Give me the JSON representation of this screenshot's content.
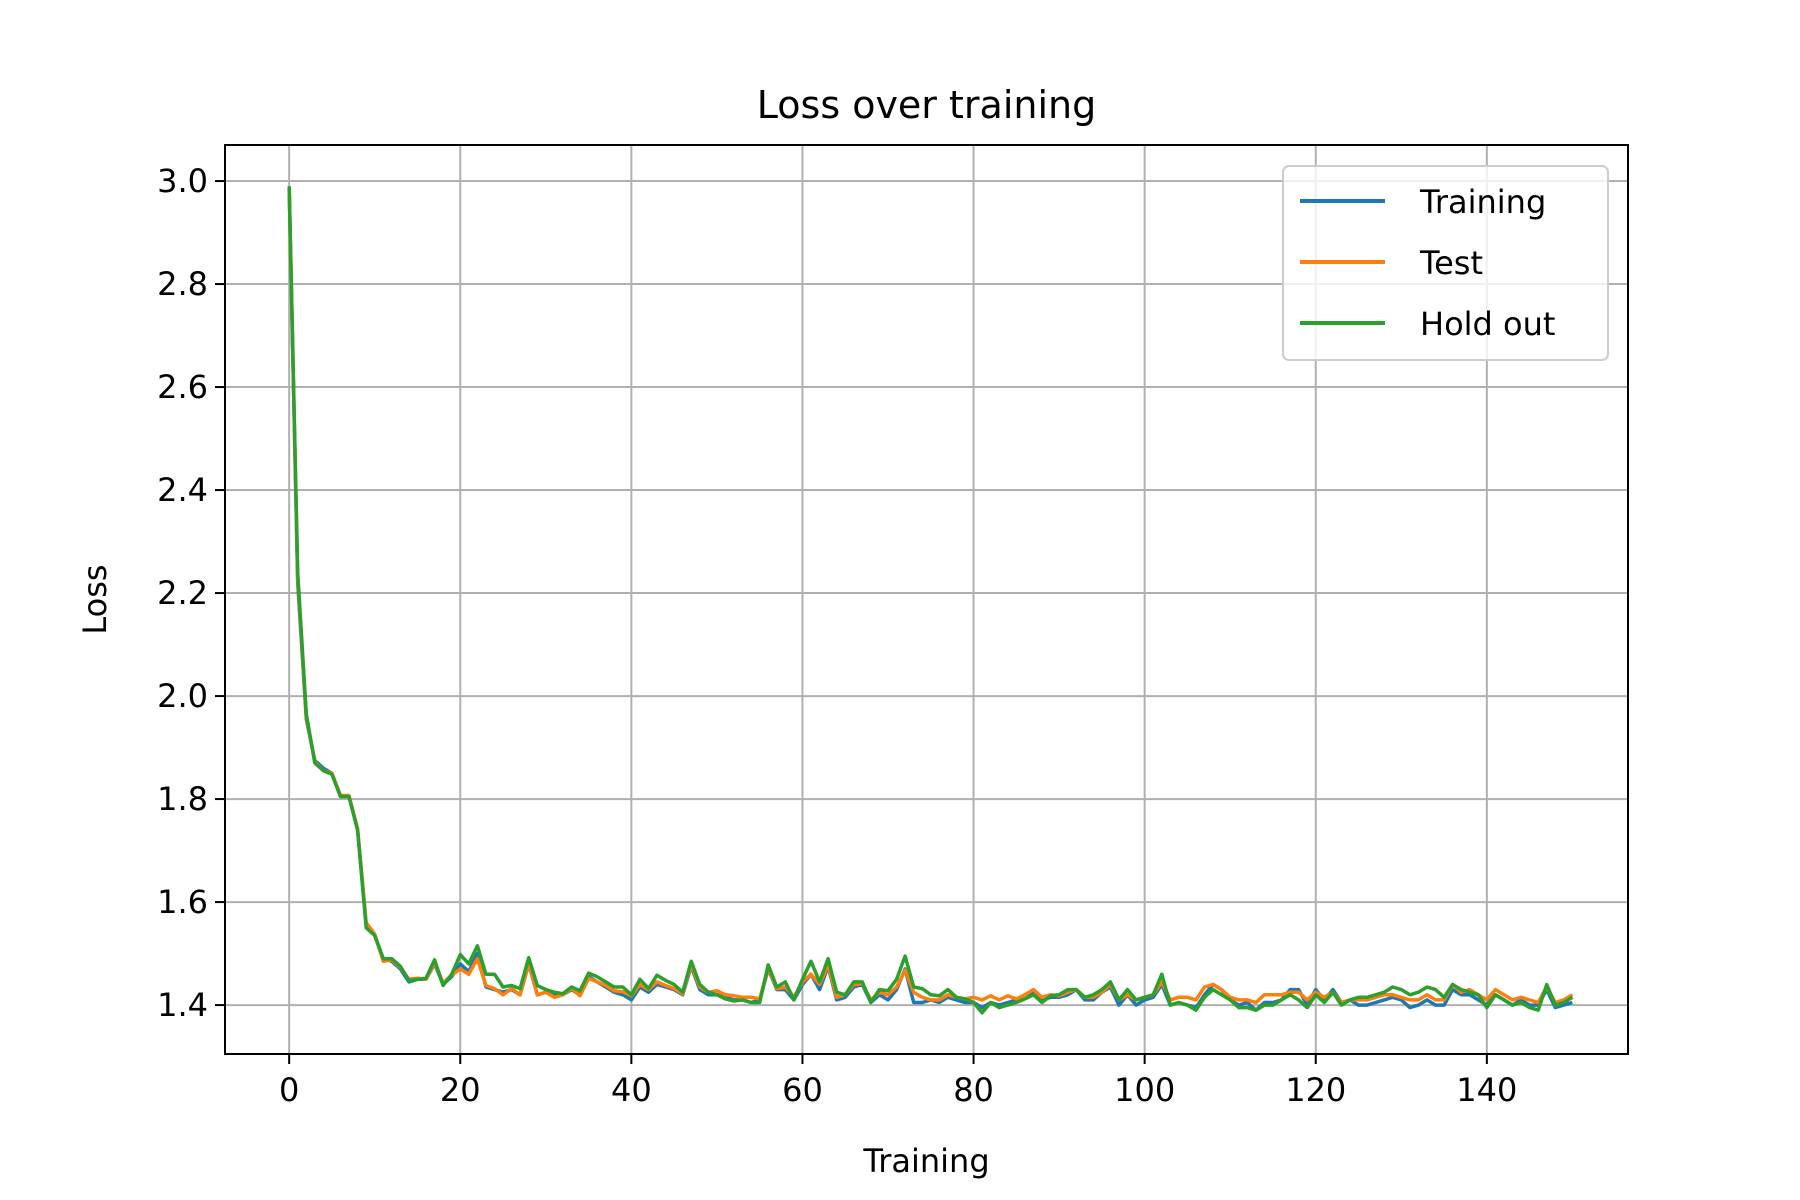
{
  "chart_data": {
    "type": "line",
    "title": "Loss over training",
    "xlabel": "Training",
    "ylabel": "Loss",
    "xlim": [
      -7.5,
      156.5
    ],
    "ylim": [
      1.305,
      3.07
    ],
    "xticks": [
      0,
      20,
      40,
      60,
      80,
      100,
      120,
      140
    ],
    "yticks": [
      1.4,
      1.6,
      1.8,
      2.0,
      2.2,
      2.4,
      2.6,
      2.8,
      3.0
    ],
    "x_tick_labels": [
      "0",
      "20",
      "40",
      "60",
      "80",
      "100",
      "120",
      "140"
    ],
    "y_tick_labels": [
      "1.4",
      "1.6",
      "1.8",
      "2.0",
      "2.2",
      "2.4",
      "2.6",
      "2.8",
      "3.0"
    ],
    "grid": true,
    "legend_position": "top-right",
    "x_start": 0,
    "series": [
      {
        "name": "Training",
        "color": "#1f77b4",
        "values": [
          2.985,
          2.22,
          1.955,
          1.875,
          1.86,
          1.85,
          1.805,
          1.805,
          1.74,
          1.555,
          1.535,
          1.49,
          1.485,
          1.47,
          1.445,
          1.45,
          1.45,
          1.48,
          1.44,
          1.455,
          1.48,
          1.465,
          1.5,
          1.435,
          1.43,
          1.425,
          1.43,
          1.42,
          1.48,
          1.42,
          1.425,
          1.42,
          1.42,
          1.43,
          1.42,
          1.455,
          1.445,
          1.435,
          1.425,
          1.42,
          1.41,
          1.435,
          1.425,
          1.44,
          1.435,
          1.43,
          1.42,
          1.475,
          1.43,
          1.42,
          1.42,
          1.415,
          1.41,
          1.41,
          1.405,
          1.41,
          1.47,
          1.43,
          1.43,
          1.41,
          1.44,
          1.46,
          1.43,
          1.475,
          1.41,
          1.415,
          1.435,
          1.44,
          1.405,
          1.42,
          1.41,
          1.43,
          1.47,
          1.405,
          1.405,
          1.41,
          1.405,
          1.415,
          1.41,
          1.405,
          1.405,
          1.395,
          1.405,
          1.4,
          1.405,
          1.41,
          1.42,
          1.425,
          1.41,
          1.415,
          1.415,
          1.42,
          1.43,
          1.41,
          1.41,
          1.425,
          1.435,
          1.4,
          1.42,
          1.4,
          1.41,
          1.415,
          1.44,
          1.4,
          1.405,
          1.4,
          1.395,
          1.42,
          1.44,
          1.43,
          1.41,
          1.4,
          1.405,
          1.39,
          1.405,
          1.405,
          1.41,
          1.43,
          1.43,
          1.4,
          1.43,
          1.41,
          1.43,
          1.405,
          1.41,
          1.4,
          1.4,
          1.405,
          1.41,
          1.415,
          1.41,
          1.395,
          1.4,
          1.41,
          1.4,
          1.4,
          1.43,
          1.42,
          1.42,
          1.41,
          1.4,
          1.42,
          1.41,
          1.4,
          1.41,
          1.4,
          1.4,
          1.43,
          1.395,
          1.4,
          1.405
        ]
      },
      {
        "name": "Test",
        "color": "#ff7f0e",
        "values": [
          2.985,
          2.23,
          1.96,
          1.872,
          1.855,
          1.85,
          1.807,
          1.807,
          1.742,
          1.56,
          1.538,
          1.485,
          1.488,
          1.473,
          1.45,
          1.452,
          1.45,
          1.482,
          1.443,
          1.458,
          1.47,
          1.46,
          1.49,
          1.438,
          1.432,
          1.42,
          1.432,
          1.42,
          1.482,
          1.42,
          1.425,
          1.415,
          1.42,
          1.432,
          1.418,
          1.452,
          1.445,
          1.438,
          1.428,
          1.426,
          1.418,
          1.44,
          1.43,
          1.445,
          1.438,
          1.432,
          1.422,
          1.478,
          1.435,
          1.425,
          1.428,
          1.42,
          1.418,
          1.415,
          1.415,
          1.412,
          1.472,
          1.432,
          1.435,
          1.415,
          1.445,
          1.46,
          1.44,
          1.478,
          1.415,
          1.42,
          1.44,
          1.442,
          1.41,
          1.425,
          1.42,
          1.435,
          1.468,
          1.425,
          1.415,
          1.41,
          1.41,
          1.42,
          1.415,
          1.412,
          1.415,
          1.41,
          1.418,
          1.41,
          1.418,
          1.412,
          1.42,
          1.43,
          1.415,
          1.42,
          1.418,
          1.425,
          1.43,
          1.415,
          1.415,
          1.425,
          1.44,
          1.41,
          1.42,
          1.41,
          1.415,
          1.42,
          1.445,
          1.41,
          1.415,
          1.415,
          1.41,
          1.435,
          1.44,
          1.43,
          1.415,
          1.41,
          1.41,
          1.405,
          1.42,
          1.42,
          1.42,
          1.425,
          1.425,
          1.41,
          1.425,
          1.415,
          1.425,
          1.405,
          1.41,
          1.41,
          1.41,
          1.415,
          1.42,
          1.42,
          1.415,
          1.41,
          1.41,
          1.42,
          1.41,
          1.41,
          1.44,
          1.425,
          1.43,
          1.42,
          1.41,
          1.43,
          1.42,
          1.41,
          1.415,
          1.41,
          1.405,
          1.435,
          1.405,
          1.41,
          1.42
        ]
      },
      {
        "name": "Hold out",
        "color": "#2ca02c",
        "values": [
          2.99,
          2.24,
          1.965,
          1.87,
          1.855,
          1.848,
          1.805,
          1.805,
          1.74,
          1.55,
          1.535,
          1.49,
          1.49,
          1.475,
          1.448,
          1.45,
          1.452,
          1.488,
          1.438,
          1.46,
          1.498,
          1.48,
          1.515,
          1.46,
          1.46,
          1.435,
          1.438,
          1.432,
          1.492,
          1.438,
          1.43,
          1.425,
          1.422,
          1.435,
          1.428,
          1.462,
          1.455,
          1.445,
          1.435,
          1.435,
          1.42,
          1.45,
          1.432,
          1.458,
          1.448,
          1.44,
          1.425,
          1.485,
          1.44,
          1.425,
          1.42,
          1.412,
          1.408,
          1.41,
          1.405,
          1.405,
          1.478,
          1.435,
          1.445,
          1.41,
          1.45,
          1.485,
          1.445,
          1.49,
          1.425,
          1.42,
          1.445,
          1.445,
          1.405,
          1.43,
          1.428,
          1.45,
          1.495,
          1.435,
          1.432,
          1.42,
          1.418,
          1.43,
          1.415,
          1.412,
          1.405,
          1.385,
          1.405,
          1.395,
          1.4,
          1.405,
          1.412,
          1.42,
          1.405,
          1.418,
          1.42,
          1.43,
          1.43,
          1.415,
          1.42,
          1.43,
          1.445,
          1.41,
          1.43,
          1.41,
          1.415,
          1.42,
          1.46,
          1.4,
          1.405,
          1.4,
          1.39,
          1.415,
          1.43,
          1.42,
          1.41,
          1.395,
          1.395,
          1.39,
          1.4,
          1.4,
          1.41,
          1.42,
          1.41,
          1.395,
          1.42,
          1.405,
          1.425,
          1.4,
          1.41,
          1.415,
          1.415,
          1.42,
          1.425,
          1.435,
          1.43,
          1.42,
          1.425,
          1.435,
          1.43,
          1.415,
          1.44,
          1.43,
          1.425,
          1.42,
          1.395,
          1.42,
          1.41,
          1.4,
          1.405,
          1.395,
          1.39,
          1.44,
          1.4,
          1.405,
          1.415
        ]
      }
    ]
  }
}
